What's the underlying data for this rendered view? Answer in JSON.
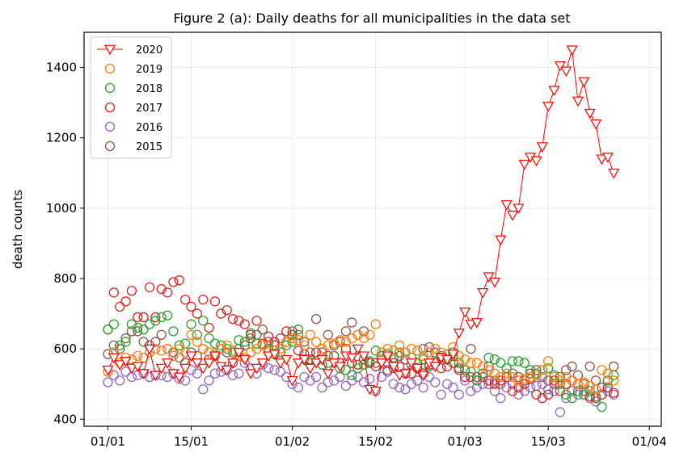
{
  "chart_data": {
    "type": "scatter",
    "title": "Figure 2 (a): Daily deaths for all municipalities in the data set",
    "xlabel": "",
    "ylabel": "death counts",
    "xlim": [
      "2019-12-28",
      "2020-04-03"
    ],
    "ylim": [
      380,
      1500
    ],
    "x_ticks": [
      "01/01",
      "15/01",
      "01/02",
      "15/02",
      "01/03",
      "15/03",
      "01/04"
    ],
    "y_ticks": [
      400,
      600,
      800,
      1000,
      1200,
      1400
    ],
    "grid": true,
    "legend_position": "top-left",
    "start_date": "2020-01-01",
    "series": [
      {
        "name": "2020",
        "color": "#ff0000",
        "marker": "triangle-down",
        "line": true,
        "values": [
          540,
          575,
          555,
          565,
          545,
          550,
          530,
          600,
          525,
          545,
          560,
          530,
          520,
          545,
          580,
          560,
          545,
          560,
          580,
          550,
          540,
          560,
          590,
          570,
          530,
          545,
          560,
          580,
          585,
          560,
          570,
          510,
          560,
          570,
          545,
          560,
          570,
          530,
          560,
          550,
          580,
          575,
          600,
          580,
          485,
          480,
          560,
          580,
          550,
          525,
          530,
          560,
          545,
          525,
          560,
          550,
          575,
          570,
          585,
          645,
          705,
          670,
          675,
          760,
          805,
          790,
          910,
          1010,
          980,
          1000,
          1125,
          1145,
          1135,
          1175,
          1290,
          1335,
          1405,
          1390,
          1450,
          1305,
          1360,
          1270,
          1240,
          1140,
          1145,
          1100
        ]
      },
      {
        "name": "2019",
        "color": "#ff7f0e",
        "marker": "circle",
        "line": false,
        "values": [
          535,
          590,
          560,
          575,
          570,
          580,
          575,
          590,
          600,
          595,
          600,
          580,
          600,
          590,
          640,
          620,
          600,
          590,
          585,
          600,
          610,
          595,
          580,
          575,
          590,
          600,
          610,
          590,
          595,
          600,
          620,
          630,
          625,
          610,
          640,
          620,
          600,
          610,
          615,
          625,
          620,
          630,
          640,
          630,
          640,
          670,
          590,
          600,
          595,
          610,
          590,
          600,
          595,
          580,
          590,
          600,
          590,
          585,
          605,
          580,
          570,
          560,
          560,
          550,
          540,
          530,
          520,
          530,
          520,
          510,
          515,
          520,
          525,
          540,
          565,
          520,
          510,
          520,
          510,
          500,
          505,
          495,
          485,
          540,
          530,
          510
        ]
      },
      {
        "name": "2018",
        "color": "#2ca02c",
        "marker": "circle",
        "line": false,
        "values": [
          655,
          670,
          610,
          620,
          670,
          660,
          655,
          670,
          680,
          690,
          695,
          650,
          610,
          615,
          670,
          640,
          680,
          630,
          615,
          610,
          600,
          590,
          625,
          620,
          645,
          615,
          610,
          600,
          585,
          590,
          610,
          620,
          655,
          570,
          560,
          565,
          555,
          560,
          580,
          545,
          540,
          525,
          545,
          555,
          565,
          595,
          580,
          585,
          575,
          590,
          590,
          575,
          560,
          570,
          550,
          565,
          580,
          570,
          590,
          560,
          540,
          535,
          510,
          530,
          575,
          570,
          560,
          545,
          565,
          565,
          560,
          540,
          530,
          540,
          545,
          525,
          500,
          470,
          460,
          480,
          470,
          480,
          465,
          435,
          510,
          525
        ]
      },
      {
        "name": "2017",
        "color": "#d62728",
        "marker": "circle",
        "line": false,
        "values": [
          655,
          760,
          720,
          735,
          765,
          690,
          690,
          775,
          690,
          770,
          760,
          790,
          795,
          740,
          720,
          700,
          740,
          660,
          735,
          700,
          710,
          685,
          680,
          670,
          640,
          680,
          615,
          635,
          620,
          600,
          650,
          640,
          595,
          585,
          570,
          590,
          600,
          580,
          580,
          560,
          600,
          560,
          555,
          570,
          560,
          550,
          580,
          560,
          545,
          550,
          530,
          530,
          545,
          530,
          555,
          560,
          545,
          550,
          580,
          540,
          520,
          520,
          510,
          520,
          510,
          500,
          510,
          520,
          480,
          490,
          500,
          515,
          470,
          460,
          470,
          510,
          480,
          500,
          510,
          500,
          470,
          465,
          460,
          470,
          490,
          475
        ]
      },
      {
        "name": "2016",
        "color": "#9467bd",
        "marker": "circle",
        "line": false,
        "values": [
          505,
          525,
          510,
          535,
          520,
          525,
          530,
          520,
          525,
          525,
          520,
          530,
          515,
          510,
          540,
          530,
          485,
          510,
          530,
          535,
          540,
          525,
          530,
          560,
          545,
          530,
          555,
          545,
          540,
          535,
          520,
          500,
          490,
          520,
          510,
          520,
          490,
          505,
          510,
          520,
          495,
          510,
          520,
          505,
          515,
          480,
          520,
          535,
          500,
          490,
          485,
          500,
          510,
          490,
          520,
          505,
          470,
          500,
          490,
          470,
          510,
          480,
          490,
          500,
          500,
          480,
          460,
          490,
          500,
          470,
          480,
          490,
          495,
          500,
          485,
          480,
          420,
          460,
          480,
          470,
          480,
          460,
          450,
          470,
          480,
          470
        ]
      },
      {
        "name": "2015",
        "color": "#8c564b",
        "marker": "circle",
        "line": false,
        "values": [
          585,
          610,
          600,
          630,
          650,
          650,
          620,
          610,
          620,
          640,
          600,
          590,
          575,
          560,
          590,
          580,
          600,
          570,
          580,
          600,
          590,
          560,
          600,
          610,
          630,
          640,
          655,
          620,
          610,
          630,
          620,
          650,
          640,
          620,
          590,
          685,
          590,
          640,
          610,
          620,
          650,
          675,
          640,
          650,
          560,
          560,
          570,
          540,
          560,
          580,
          570,
          555,
          560,
          600,
          605,
          590,
          575,
          570,
          560,
          545,
          540,
          600,
          520,
          530,
          550,
          510,
          500,
          520,
          530,
          520,
          510,
          530,
          540,
          520,
          510,
          500,
          520,
          540,
          550,
          525,
          500,
          550,
          510,
          490,
          510,
          550
        ]
      }
    ]
  }
}
